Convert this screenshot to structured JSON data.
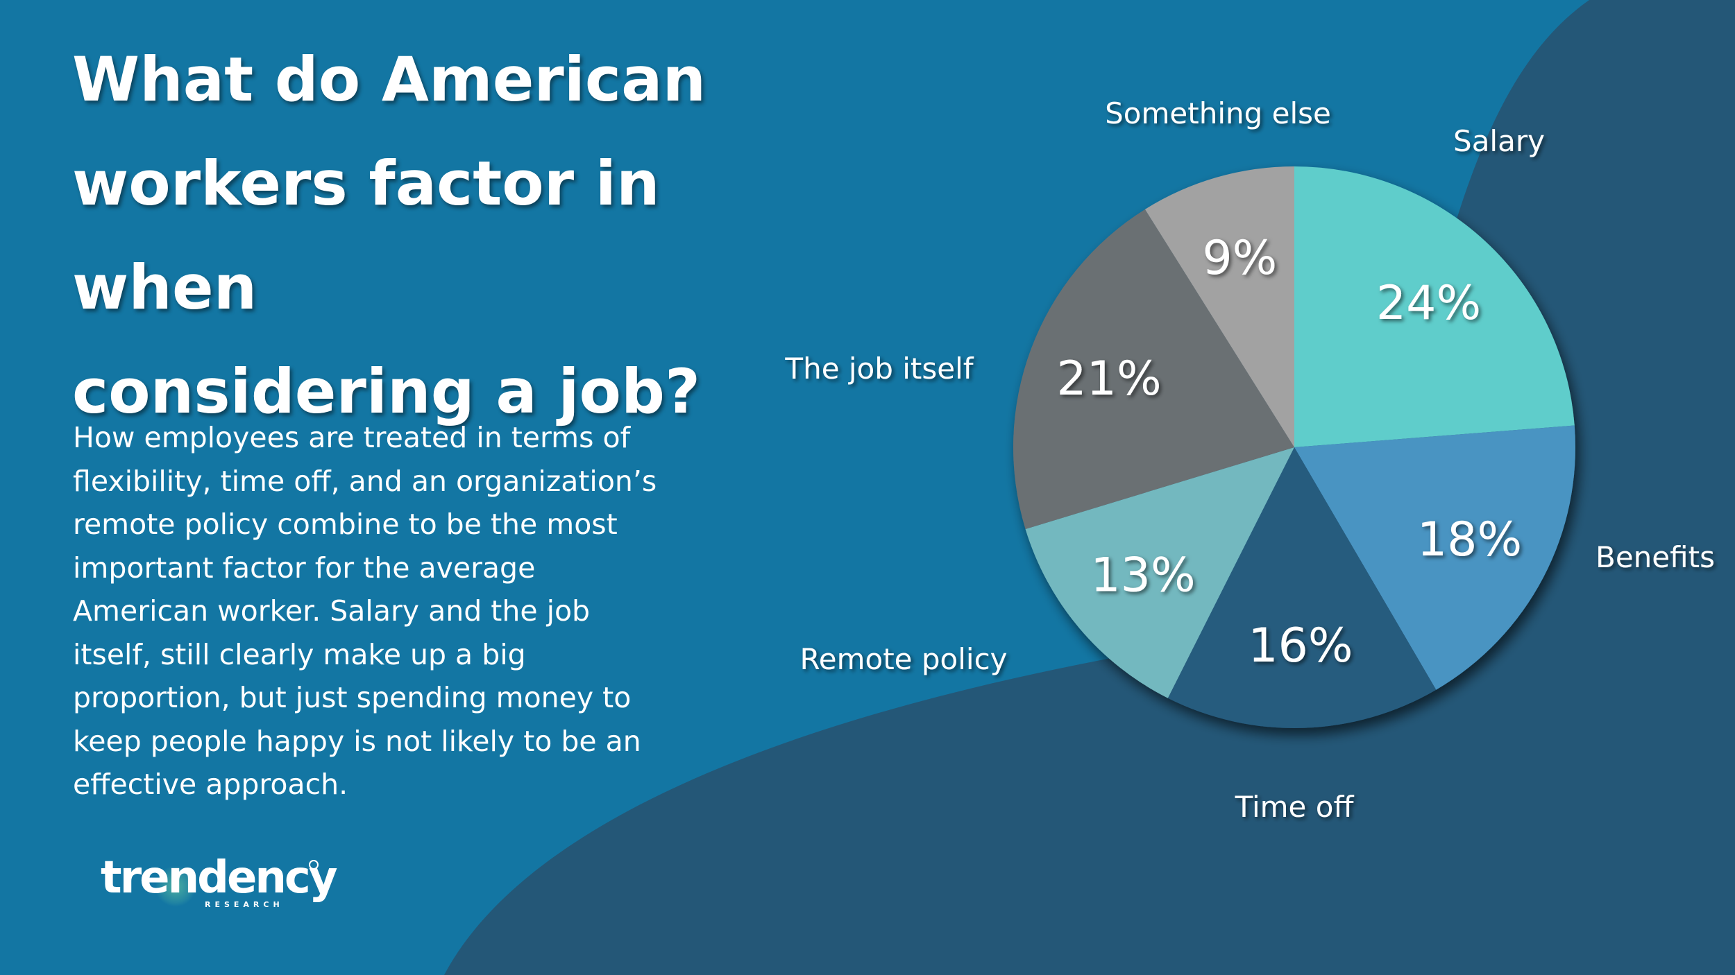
{
  "title_lines": [
    "What do American",
    "workers factor in when",
    "considering a job?"
  ],
  "body_lines": [
    "How employees are treated in terms of",
    "flexibility, time off, and an organization’s",
    "remote policy combine to be the most",
    "important factor for the average",
    "American worker. Salary and the job",
    "itself, still clearly make up a  big",
    "proportion, but just spending money to",
    "keep people happy is not likely to be an",
    "effective approach."
  ],
  "logo": {
    "word": "trendency",
    "sub": "RESEARCH"
  },
  "colors": {
    "background": "#1376a3",
    "background_dark": "#245777",
    "text": "#ffffff"
  },
  "chart_data": {
    "type": "pie",
    "title": "What do American workers factor in when considering a job?",
    "start": "12 o'clock, clockwise",
    "slices": [
      {
        "label": "Salary",
        "value": 24,
        "value_label": "24%",
        "color": "#5ecdcb"
      },
      {
        "label": "Benefits",
        "value": 18,
        "value_label": "18%",
        "color": "#4a94c2"
      },
      {
        "label": "Time off",
        "value": 16,
        "value_label": "16%",
        "color": "#285b7e"
      },
      {
        "label": "Remote policy",
        "value": 13,
        "value_label": "13%",
        "color": "#73b8bf"
      },
      {
        "label": "The job itself",
        "value": 21,
        "value_label": "21%",
        "color": "#6b6f73"
      },
      {
        "label": "Something else",
        "value": 9,
        "value_label": "9%",
        "color": "#a2a2a2"
      }
    ]
  }
}
